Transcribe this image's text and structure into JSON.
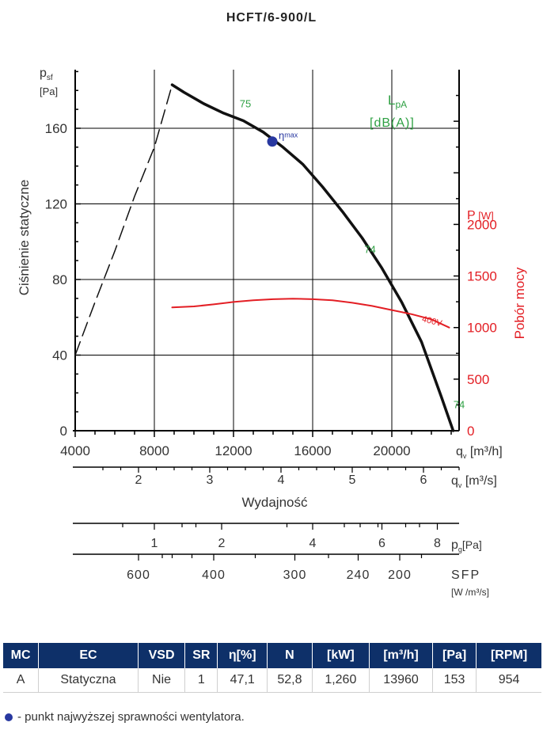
{
  "chart_data": {
    "type": "line",
    "title": "HCFT/6-900/L",
    "left_axis": {
      "label": "Ciśnienie statyczne",
      "symbol": "p",
      "symbol_sub": "sf",
      "unit": "[Pa]",
      "ticks": [
        0,
        40,
        80,
        120,
        160
      ],
      "range": [
        0,
        191
      ]
    },
    "right_axis": {
      "label": "Pobór mocy",
      "symbol": "P",
      "unit": "[W]",
      "ticks": [
        0,
        500,
        1000,
        1500,
        2000
      ],
      "range": [
        0,
        3500
      ],
      "color": "#e31e24"
    },
    "x_axis_m3h": {
      "symbol": "q",
      "sub": "v",
      "unit": "[m³/h]",
      "ticks": [
        4000,
        8000,
        12000,
        16000,
        20000
      ],
      "range": [
        4000,
        23400
      ]
    },
    "x_axis_m3s": {
      "symbol": "q",
      "sub": "v",
      "unit": "[m³/s]",
      "ticks": [
        2,
        3,
        4,
        5,
        6
      ],
      "xlabel": "Wydajność"
    },
    "pg_scale": {
      "label": "p",
      "sub": "g",
      "unit": "[Pa]",
      "ticks": [
        {
          "label": "1",
          "q": 8000
        },
        {
          "label": "2",
          "q": 11400
        },
        {
          "label": "4",
          "q": 16000
        },
        {
          "label": "6",
          "q": 19500
        },
        {
          "label": "8",
          "q": 22300
        }
      ],
      "minor_q": [
        6400,
        9400,
        10100,
        14700,
        17600,
        18400,
        19300,
        20700,
        21400
      ]
    },
    "sfp_scale": {
      "label": "SFP",
      "unit": "[W /m³/s]",
      "ticks": [
        {
          "label": "600",
          "q": 7200
        },
        {
          "label": "400",
          "q": 11000
        },
        {
          "label": "300",
          "q": 15100
        },
        {
          "label": "240",
          "q": 18300
        },
        {
          "label": "200",
          "q": 20400
        }
      ],
      "minor_q": [
        8400,
        8900,
        9900,
        13100,
        16800,
        21500
      ]
    },
    "lpa_label": "L",
    "lpa_sub": "pA",
    "lpa_unit": "[dB(A)]",
    "lpa_color": "#2ea043",
    "series": [
      {
        "name": "static_pressure",
        "axis": "left",
        "color": "#111111",
        "points": [
          [
            8900,
            183
          ],
          [
            9500,
            179
          ],
          [
            10500,
            173
          ],
          [
            11500,
            168
          ],
          [
            12500,
            164
          ],
          [
            13500,
            158
          ],
          [
            14500,
            150
          ],
          [
            15500,
            141
          ],
          [
            16500,
            129
          ],
          [
            17500,
            116
          ],
          [
            18500,
            102
          ],
          [
            19500,
            86
          ],
          [
            20500,
            68
          ],
          [
            21500,
            47
          ],
          [
            22500,
            18
          ],
          [
            23100,
            0
          ]
        ]
      },
      {
        "name": "stall_region",
        "axis": "left",
        "color": "#111111",
        "dashed": true,
        "points": [
          [
            4000,
            40
          ],
          [
            5000,
            68
          ],
          [
            6000,
            95
          ],
          [
            7000,
            124
          ],
          [
            8000,
            150
          ],
          [
            8900,
            183
          ]
        ]
      },
      {
        "name": "400V",
        "axis": "right",
        "color": "#e31e24",
        "points": [
          [
            8900,
            1195
          ],
          [
            10000,
            1205
          ],
          [
            11000,
            1225
          ],
          [
            12000,
            1248
          ],
          [
            13000,
            1265
          ],
          [
            14000,
            1275
          ],
          [
            15000,
            1280
          ],
          [
            16000,
            1275
          ],
          [
            17000,
            1265
          ],
          [
            18000,
            1240
          ],
          [
            19000,
            1210
          ],
          [
            20000,
            1170
          ],
          [
            21000,
            1130
          ],
          [
            22000,
            1080
          ],
          [
            22900,
            1000
          ]
        ]
      }
    ],
    "series_label_400v": "400V",
    "sound_labels": [
      {
        "text": "75",
        "q": 12600,
        "p": 171
      },
      {
        "text": "74",
        "q": 18900,
        "p": 94
      },
      {
        "text": "74",
        "q": 23400,
        "p": 12
      }
    ],
    "eta_max": {
      "q": 13960,
      "p": 153,
      "label": "η",
      "sub": "max",
      "color": "#2838a0"
    }
  },
  "table": {
    "headers": [
      "MC",
      "EC",
      "VSD",
      "SR",
      "η[%]",
      "N",
      "[kW]",
      "[m³/h]",
      "[Pa]",
      "[RPM]"
    ],
    "row": [
      "A",
      "Statyczna",
      "Nie",
      "1",
      "47,1",
      "52,8",
      "1,260",
      "13960",
      "153",
      "954"
    ]
  },
  "footnote": "- punkt najwyższej sprawności wentylatora."
}
